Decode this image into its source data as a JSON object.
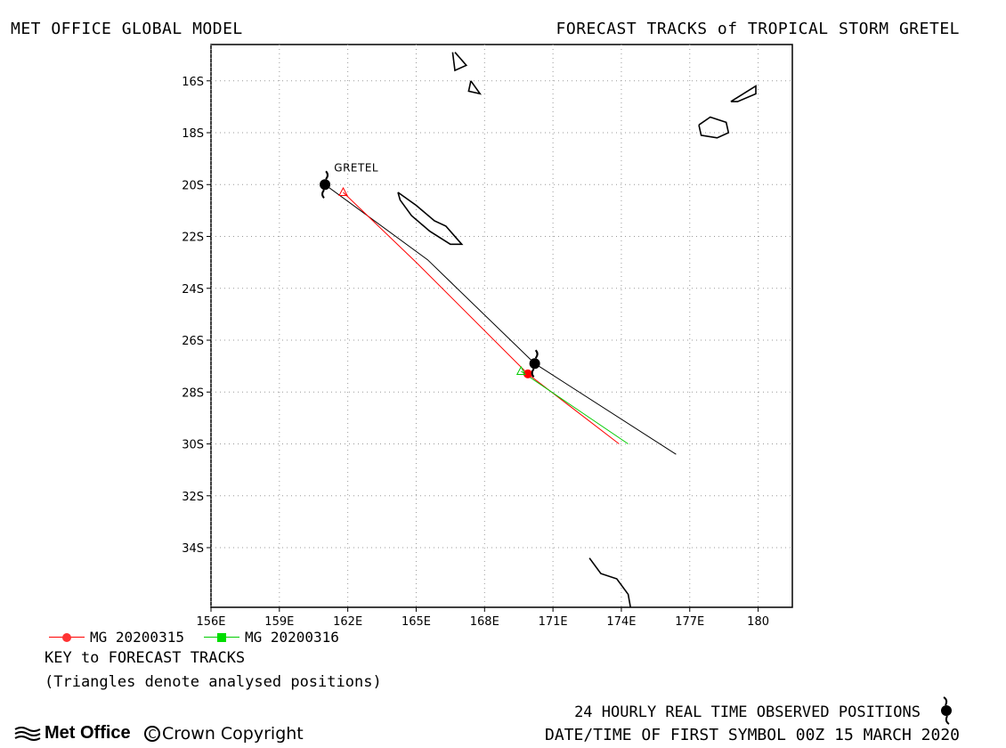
{
  "header": {
    "left": "MET OFFICE GLOBAL MODEL",
    "right": "FORECAST TRACKS of TROPICAL STORM GRETEL"
  },
  "chart_data": {
    "type": "map",
    "projection": "lat-lon",
    "xlim": [
      156,
      181.5
    ],
    "ylim": [
      -36.3,
      -14.6
    ],
    "grid": true,
    "x_ticks": [
      {
        "value": 156,
        "label": "156E"
      },
      {
        "value": 159,
        "label": "159E"
      },
      {
        "value": 162,
        "label": "162E"
      },
      {
        "value": 165,
        "label": "165E"
      },
      {
        "value": 168,
        "label": "168E"
      },
      {
        "value": 171,
        "label": "171E"
      },
      {
        "value": 174,
        "label": "174E"
      },
      {
        "value": 177,
        "label": "177E"
      },
      {
        "value": 180,
        "label": "180"
      }
    ],
    "y_ticks": [
      {
        "value": -16,
        "label": "16S"
      },
      {
        "value": -18,
        "label": "18S"
      },
      {
        "value": -20,
        "label": "20S"
      },
      {
        "value": -22,
        "label": "22S"
      },
      {
        "value": -24,
        "label": "24S"
      },
      {
        "value": -26,
        "label": "26S"
      },
      {
        "value": -28,
        "label": "28S"
      },
      {
        "value": -30,
        "label": "30S"
      },
      {
        "value": -32,
        "label": "32S"
      },
      {
        "value": -34,
        "label": "34S"
      }
    ],
    "storm_label": "GRETEL",
    "storm_label_position": [
      161.4,
      -19.5
    ],
    "observed_track": {
      "color": "#000000",
      "points": [
        [
          161.0,
          -20.0
        ],
        [
          165.5,
          -22.9
        ],
        [
          170.2,
          -26.9
        ],
        [
          176.4,
          -30.4
        ]
      ],
      "storm_symbols": [
        [
          161.0,
          -20.0
        ],
        [
          170.2,
          -26.9
        ]
      ]
    },
    "series": [
      {
        "name": "MG 20200315",
        "color": "#ff0000",
        "marker": "circle",
        "points": [
          [
            161.8,
            -20.3
          ],
          [
            165.0,
            -23.0
          ],
          [
            169.9,
            -27.3
          ],
          [
            173.9,
            -30.0
          ]
        ],
        "analysed_triangle": [
          161.8,
          -20.3
        ],
        "marker_points": [
          [
            169.9,
            -27.3
          ]
        ]
      },
      {
        "name": "MG 20200316",
        "color": "#00cc00",
        "marker": "square",
        "points": [
          [
            169.6,
            -27.2
          ],
          [
            174.3,
            -30.0
          ]
        ],
        "analysed_triangle": [
          169.6,
          -27.2
        ],
        "marker_points": []
      }
    ],
    "land": [
      {
        "name": "vanuatu-north-1",
        "points": [
          [
            166.7,
            -14.9
          ],
          [
            167.2,
            -15.4
          ],
          [
            166.7,
            -15.6
          ],
          [
            166.6,
            -14.9
          ]
        ]
      },
      {
        "name": "vanuatu-north-2",
        "points": [
          [
            167.4,
            -16.0
          ],
          [
            167.8,
            -16.5
          ],
          [
            167.3,
            -16.4
          ],
          [
            167.4,
            -16.0
          ]
        ]
      },
      {
        "name": "new-caledonia",
        "points": [
          [
            164.2,
            -20.3
          ],
          [
            165.0,
            -20.8
          ],
          [
            165.8,
            -21.4
          ],
          [
            166.3,
            -21.6
          ],
          [
            167.0,
            -22.3
          ],
          [
            166.5,
            -22.3
          ],
          [
            165.6,
            -21.8
          ],
          [
            164.8,
            -21.2
          ],
          [
            164.3,
            -20.6
          ],
          [
            164.2,
            -20.3
          ]
        ]
      },
      {
        "name": "fiji-viti-levu",
        "points": [
          [
            177.4,
            -17.7
          ],
          [
            177.9,
            -17.4
          ],
          [
            178.6,
            -17.6
          ],
          [
            178.7,
            -18.0
          ],
          [
            178.2,
            -18.2
          ],
          [
            177.5,
            -18.1
          ],
          [
            177.4,
            -17.7
          ]
        ]
      },
      {
        "name": "fiji-vanua-levu",
        "points": [
          [
            178.8,
            -16.8
          ],
          [
            179.9,
            -16.2
          ],
          [
            179.9,
            -16.5
          ],
          [
            179.1,
            -16.8
          ],
          [
            178.8,
            -16.8
          ]
        ]
      },
      {
        "name": "new-zealand-north-tip",
        "points": [
          [
            172.6,
            -34.4
          ],
          [
            173.1,
            -35.0
          ],
          [
            173.8,
            -35.2
          ],
          [
            174.3,
            -35.8
          ],
          [
            174.4,
            -36.3
          ]
        ]
      }
    ]
  },
  "legend": [
    {
      "label": "MG 20200315",
      "color": "#ff0000",
      "marker": "circle"
    },
    {
      "label": "MG 20200316",
      "color": "#00cc00",
      "marker": "square"
    }
  ],
  "key": {
    "title": "KEY to FORECAST TRACKS",
    "note": "(Triangles denote analysed positions)"
  },
  "footer": {
    "observed": "24 HOURLY REAL TIME OBSERVED POSITIONS",
    "datetime": "DATE/TIME OF FIRST SYMBOL 00Z 15 MARCH 2020",
    "logo_text": "Met Office",
    "copyright_symbol": "C",
    "copyright_text": "Crown Copyright"
  }
}
